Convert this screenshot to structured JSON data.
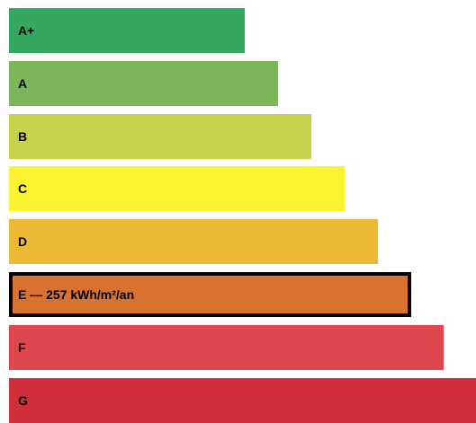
{
  "chart_data": {
    "type": "bar",
    "orientation": "horizontal",
    "categories": [
      "A+",
      "A",
      "B",
      "C",
      "D",
      "E",
      "F",
      "G"
    ],
    "labels": [
      "A+",
      "A",
      "B",
      "C",
      "D",
      "E — 257 kWh/m²/an",
      "F",
      "G"
    ],
    "colors": [
      "#35a75f",
      "#7cb65a",
      "#c6d34a",
      "#fbf32f",
      "#ebb934",
      "#d9712f",
      "#df474f",
      "#d02f3a"
    ],
    "highlighted": "E",
    "highlight_value": 257,
    "highlight_unit": "kWh/m²/an",
    "title": "",
    "xlabel": "",
    "ylabel": "",
    "grid": false,
    "legend": "none"
  }
}
